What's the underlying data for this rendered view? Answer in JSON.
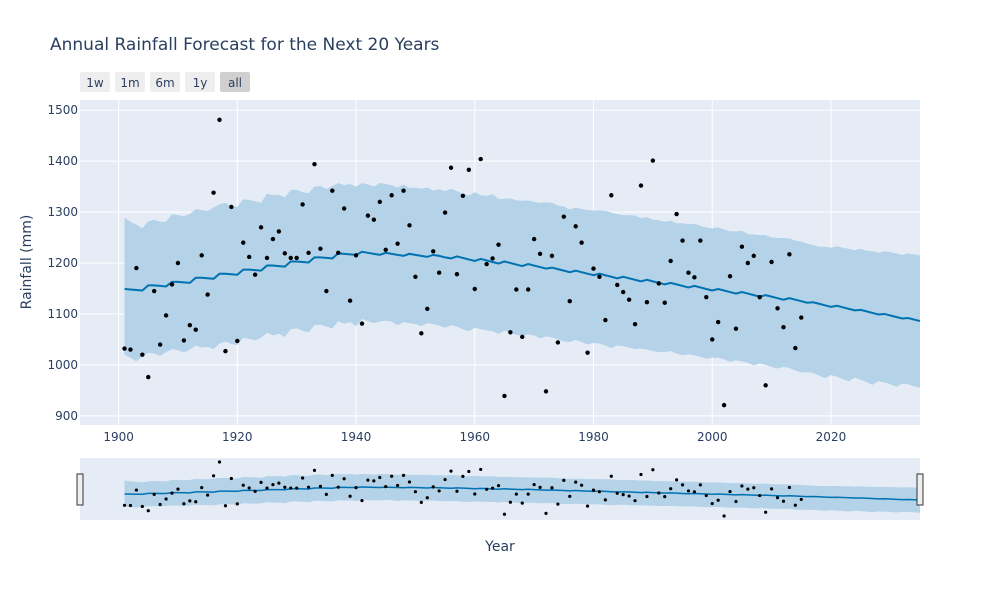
{
  "title": "Annual Rainfall Forecast for the Next 20 Years",
  "range_selector": {
    "buttons": [
      {
        "label": "1w",
        "active": false
      },
      {
        "label": "1m",
        "active": false
      },
      {
        "label": "6m",
        "active": false
      },
      {
        "label": "1y",
        "active": false
      },
      {
        "label": "all",
        "active": true
      }
    ]
  },
  "colors": {
    "plot_bg": "#e5ecf6",
    "grid": "#ffffff",
    "band": "#b4d2e8",
    "line": "#0072b2",
    "points": "#000000",
    "text": "#2a3f5f",
    "button_bg": "#eeeeee",
    "button_active_bg": "#d0d0d0"
  },
  "chart_data": {
    "type": "line",
    "title": "Annual Rainfall Forecast for the Next 20 Years",
    "xlabel": "Year",
    "ylabel": "Rainfall (mm)",
    "xlim": [
      1893.5,
      2035
    ],
    "ylim": [
      882,
      1520
    ],
    "x_ticks": [
      1900,
      1920,
      1940,
      1960,
      1980,
      2000,
      2020
    ],
    "y_ticks": [
      900,
      1000,
      1100,
      1200,
      1300,
      1400,
      1500
    ],
    "grid": true,
    "legend": "none",
    "forecast": {
      "x": [
        1901,
        1902,
        1903,
        1904,
        1905,
        1906,
        1907,
        1908,
        1909,
        1910,
        1911,
        1912,
        1913,
        1914,
        1915,
        1916,
        1917,
        1918,
        1919,
        1920,
        1921,
        1922,
        1923,
        1924,
        1925,
        1926,
        1927,
        1928,
        1929,
        1930,
        1931,
        1932,
        1933,
        1934,
        1935,
        1936,
        1937,
        1938,
        1939,
        1940,
        1941,
        1942,
        1943,
        1944,
        1945,
        1946,
        1947,
        1948,
        1949,
        1950,
        1951,
        1952,
        1953,
        1954,
        1955,
        1956,
        1957,
        1958,
        1959,
        1960,
        1961,
        1962,
        1963,
        1964,
        1965,
        1966,
        1967,
        1968,
        1969,
        1970,
        1971,
        1972,
        1973,
        1974,
        1975,
        1976,
        1977,
        1978,
        1979,
        1980,
        1981,
        1982,
        1983,
        1984,
        1985,
        1986,
        1987,
        1988,
        1989,
        1990,
        1991,
        1992,
        1993,
        1994,
        1995,
        1996,
        1997,
        1998,
        1999,
        2000,
        2001,
        2002,
        2003,
        2004,
        2005,
        2006,
        2007,
        2008,
        2009,
        2010,
        2011,
        2012,
        2013,
        2014,
        2015,
        2016,
        2017,
        2018,
        2019,
        2020,
        2021,
        2022,
        2023,
        2024,
        2025,
        2026,
        2027,
        2028,
        2029,
        2030,
        2031,
        2032,
        2033,
        2034,
        2035
      ],
      "yhat": [
        1149,
        1148,
        1147,
        1146,
        1156,
        1156,
        1155,
        1154,
        1163,
        1163,
        1162,
        1161,
        1171,
        1171,
        1170,
        1169,
        1179,
        1179,
        1178,
        1177,
        1187,
        1187,
        1186,
        1185,
        1195,
        1195,
        1194,
        1193,
        1203,
        1203,
        1202,
        1201,
        1211,
        1211,
        1210,
        1209,
        1219,
        1218,
        1217,
        1216,
        1222,
        1220,
        1218,
        1216,
        1220,
        1218,
        1216,
        1214,
        1218,
        1216,
        1214,
        1212,
        1216,
        1214,
        1211,
        1209,
        1213,
        1210,
        1207,
        1204,
        1208,
        1205,
        1202,
        1199,
        1203,
        1200,
        1197,
        1194,
        1198,
        1195,
        1192,
        1189,
        1191,
        1188,
        1185,
        1182,
        1185,
        1182,
        1179,
        1176,
        1179,
        1176,
        1173,
        1170,
        1173,
        1170,
        1167,
        1164,
        1167,
        1164,
        1161,
        1158,
        1161,
        1158,
        1155,
        1152,
        1155,
        1152,
        1149,
        1146,
        1149,
        1146,
        1143,
        1140,
        1143,
        1140,
        1137,
        1134,
        1137,
        1134,
        1131,
        1128,
        1131,
        1128,
        1125,
        1122,
        1123,
        1120,
        1117,
        1114,
        1116,
        1113,
        1110,
        1107,
        1108,
        1105,
        1102,
        1099,
        1100,
        1097,
        1094,
        1091,
        1092,
        1089,
        1086
      ],
      "yhat_upper": [
        1289,
        1281,
        1275,
        1268,
        1282,
        1285,
        1281,
        1281,
        1296,
        1294,
        1292,
        1296,
        1306,
        1304,
        1302,
        1309,
        1315,
        1318,
        1312,
        1310,
        1325,
        1324,
        1321,
        1318,
        1336,
        1333,
        1334,
        1329,
        1343,
        1344,
        1339,
        1337,
        1350,
        1351,
        1345,
        1351,
        1357,
        1353,
        1355,
        1350,
        1357,
        1354,
        1350,
        1357,
        1355,
        1353,
        1348,
        1354,
        1347,
        1348,
        1346,
        1348,
        1342,
        1345,
        1341,
        1346,
        1341,
        1336,
        1332,
        1339,
        1333,
        1332,
        1335,
        1326,
        1326,
        1327,
        1323,
        1322,
        1323,
        1320,
        1318,
        1319,
        1318,
        1313,
        1311,
        1305,
        1309,
        1306,
        1304,
        1303,
        1303,
        1302,
        1299,
        1296,
        1294,
        1294,
        1293,
        1288,
        1290,
        1285,
        1284,
        1281,
        1283,
        1278,
        1278,
        1276,
        1277,
        1273,
        1270,
        1268,
        1270,
        1266,
        1262,
        1262,
        1263,
        1257,
        1256,
        1255,
        1255,
        1250,
        1249,
        1249,
        1248,
        1244,
        1242,
        1238,
        1235,
        1232,
        1232,
        1230,
        1233,
        1230,
        1228,
        1225,
        1228,
        1224,
        1223,
        1220,
        1223,
        1221,
        1219,
        1216,
        1219,
        1217,
        1215
      ],
      "yhat_lower": [
        1020,
        1014,
        1007,
        1017,
        1024,
        1022,
        1018,
        1025,
        1031,
        1029,
        1024,
        1030,
        1038,
        1034,
        1035,
        1031,
        1042,
        1046,
        1041,
        1039,
        1053,
        1051,
        1048,
        1053,
        1063,
        1058,
        1061,
        1055,
        1070,
        1072,
        1067,
        1064,
        1078,
        1079,
        1075,
        1072,
        1086,
        1081,
        1084,
        1076,
        1090,
        1086,
        1082,
        1085,
        1087,
        1085,
        1078,
        1084,
        1082,
        1080,
        1076,
        1082,
        1080,
        1077,
        1073,
        1078,
        1075,
        1070,
        1066,
        1073,
        1070,
        1068,
        1066,
        1061,
        1067,
        1063,
        1059,
        1057,
        1060,
        1058,
        1052,
        1056,
        1054,
        1050,
        1046,
        1045,
        1049,
        1045,
        1040,
        1043,
        1042,
        1038,
        1033,
        1038,
        1037,
        1034,
        1031,
        1032,
        1030,
        1027,
        1025,
        1025,
        1027,
        1022,
        1019,
        1021,
        1019,
        1016,
        1012,
        1014,
        1014,
        1011,
        1006,
        1009,
        1007,
        1004,
        999,
        1003,
        1000,
        996,
        993,
        996,
        994,
        989,
        985,
        986,
        984,
        979,
        974,
        980,
        977,
        972,
        968,
        975,
        971,
        966,
        961,
        968,
        966,
        962,
        957,
        963,
        962,
        958,
        955
      ]
    },
    "observed": {
      "x": [
        1901,
        1902,
        1903,
        1904,
        1905,
        1906,
        1907,
        1908,
        1909,
        1910,
        1911,
        1912,
        1913,
        1914,
        1915,
        1916,
        1917,
        1918,
        1919,
        1920,
        1921,
        1922,
        1923,
        1924,
        1925,
        1926,
        1927,
        1928,
        1929,
        1930,
        1931,
        1932,
        1933,
        1934,
        1935,
        1936,
        1937,
        1938,
        1939,
        1940,
        1941,
        1942,
        1943,
        1944,
        1945,
        1946,
        1947,
        1948,
        1949,
        1950,
        1951,
        1952,
        1953,
        1954,
        1955,
        1956,
        1957,
        1958,
        1959,
        1960,
        1961,
        1962,
        1963,
        1964,
        1965,
        1966,
        1967,
        1968,
        1969,
        1970,
        1971,
        1972,
        1973,
        1974,
        1975,
        1976,
        1977,
        1978,
        1979,
        1980,
        1981,
        1982,
        1983,
        1984,
        1985,
        1986,
        1987,
        1988,
        1989,
        1990,
        1991,
        1992,
        1993,
        1994,
        1995,
        1996,
        1997,
        1998,
        1999,
        2000,
        2001,
        2002,
        2003,
        2004,
        2005,
        2006,
        2007,
        2008,
        2009,
        2010,
        2011,
        2012,
        2013,
        2014,
        2015
      ],
      "y": [
        1032,
        1030,
        1190,
        1020,
        976,
        1145,
        1040,
        1097,
        1158,
        1200,
        1048,
        1078,
        1069,
        1215,
        1138,
        1338,
        1481,
        1027,
        1310,
        1047,
        1240,
        1212,
        1177,
        1270,
        1210,
        1247,
        1262,
        1219,
        1210,
        1210,
        1315,
        1220,
        1394,
        1228,
        1145,
        1342,
        1220,
        1307,
        1126,
        1215,
        1081,
        1293,
        1285,
        1320,
        1226,
        1333,
        1238,
        1342,
        1274,
        1173,
        1062,
        1110,
        1223,
        1181,
        1299,
        1387,
        1178,
        1332,
        1383,
        1149,
        1404,
        1198,
        1209,
        1236,
        939,
        1064,
        1148,
        1055,
        1148,
        1247,
        1218,
        948,
        1214,
        1044,
        1291,
        1125,
        1272,
        1240,
        1024,
        1189,
        1173,
        1088,
        1333,
        1157,
        1143,
        1128,
        1080,
        1352,
        1123,
        1401,
        1160,
        1122,
        1204,
        1296,
        1244,
        1181,
        1172,
        1244,
        1133,
        1050,
        1084,
        921,
        1174,
        1071,
        1232,
        1200,
        1214,
        1133,
        960,
        1202,
        1111,
        1074,
        1217,
        1033,
        1093
      ]
    },
    "range_slider": true
  }
}
